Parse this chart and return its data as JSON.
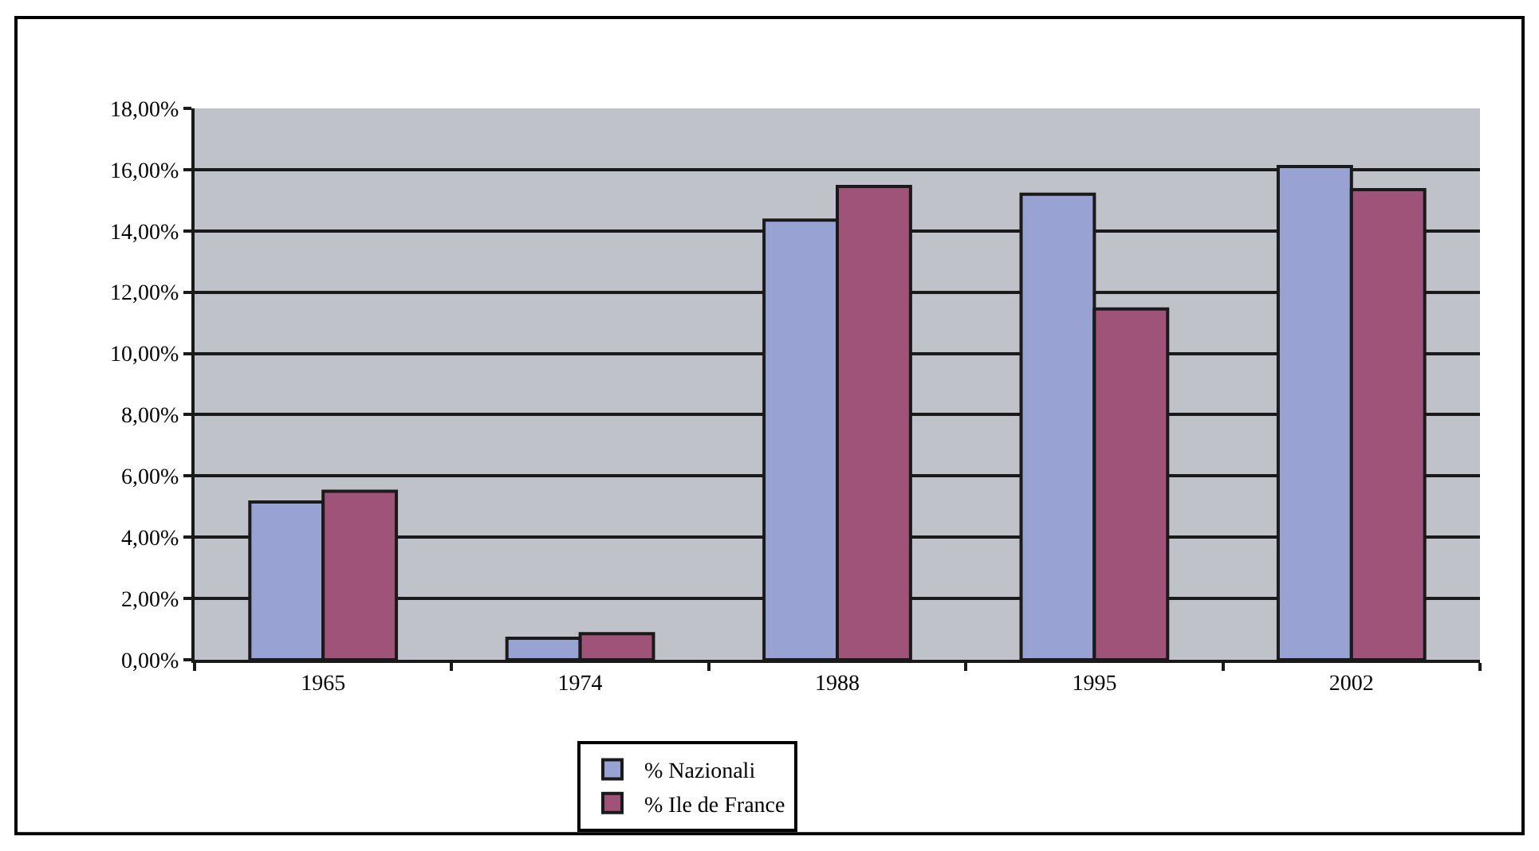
{
  "chart_data": {
    "type": "bar",
    "categories": [
      "1965",
      "1974",
      "1988",
      "1995",
      "2002"
    ],
    "series": [
      {
        "name": "% Nazionali",
        "color": "#99a3d3",
        "values": [
          5.15,
          0.7,
          14.35,
          15.2,
          16.1
        ]
      },
      {
        "name": "% Ile de France",
        "color": "#a05379",
        "values": [
          5.5,
          0.85,
          15.45,
          11.45,
          15.35
        ]
      }
    ],
    "ylim": [
      0,
      18
    ],
    "yticks": [
      {
        "value": 0,
        "label": "0,00%"
      },
      {
        "value": 2,
        "label": "2,00%"
      },
      {
        "value": 4,
        "label": "4,00%"
      },
      {
        "value": 6,
        "label": "6,00%"
      },
      {
        "value": 8,
        "label": "8,00%"
      },
      {
        "value": 10,
        "label": "10,00%"
      },
      {
        "value": 12,
        "label": "12,00%"
      },
      {
        "value": 14,
        "label": "14,00%"
      },
      {
        "value": 16,
        "label": "16,00%"
      },
      {
        "value": 18,
        "label": "18,00%"
      }
    ],
    "grid": "y",
    "legend": "bottom"
  }
}
